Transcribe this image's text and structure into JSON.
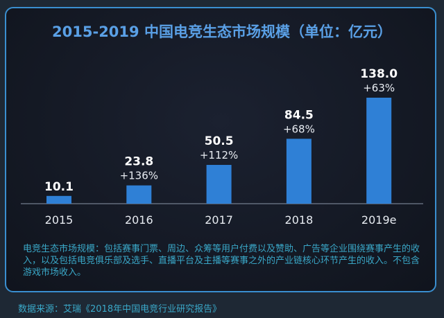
{
  "chart_data": {
    "type": "bar",
    "title": "2015-2019 中国电竞生态市场规模（单位：亿元）",
    "categories": [
      "2015",
      "2016",
      "2017",
      "2018",
      "2019e"
    ],
    "values": [
      10.1,
      23.8,
      50.5,
      84.5,
      138.0
    ],
    "value_labels": [
      "10.1",
      "23.8",
      "50.5",
      "84.5",
      "138.0"
    ],
    "growth_labels": [
      "",
      "+136%",
      "+112%",
      "+68%",
      "+63%"
    ],
    "ylim": [
      0,
      138
    ],
    "grid": false,
    "bar_color": "#2f80d6"
  },
  "note": "电竞生态市场规模：包括赛事门票、周边、众筹等用户付费以及赞助、广告等企业围绕赛事产生的收入，以及包括电竞俱乐部及选手、直播平台及主播等赛事之外的产业链核心环节产生的收入。不包含游戏市场收入。",
  "source": "数据来源：艾瑞《2018年中国电竞行业研究报告》"
}
